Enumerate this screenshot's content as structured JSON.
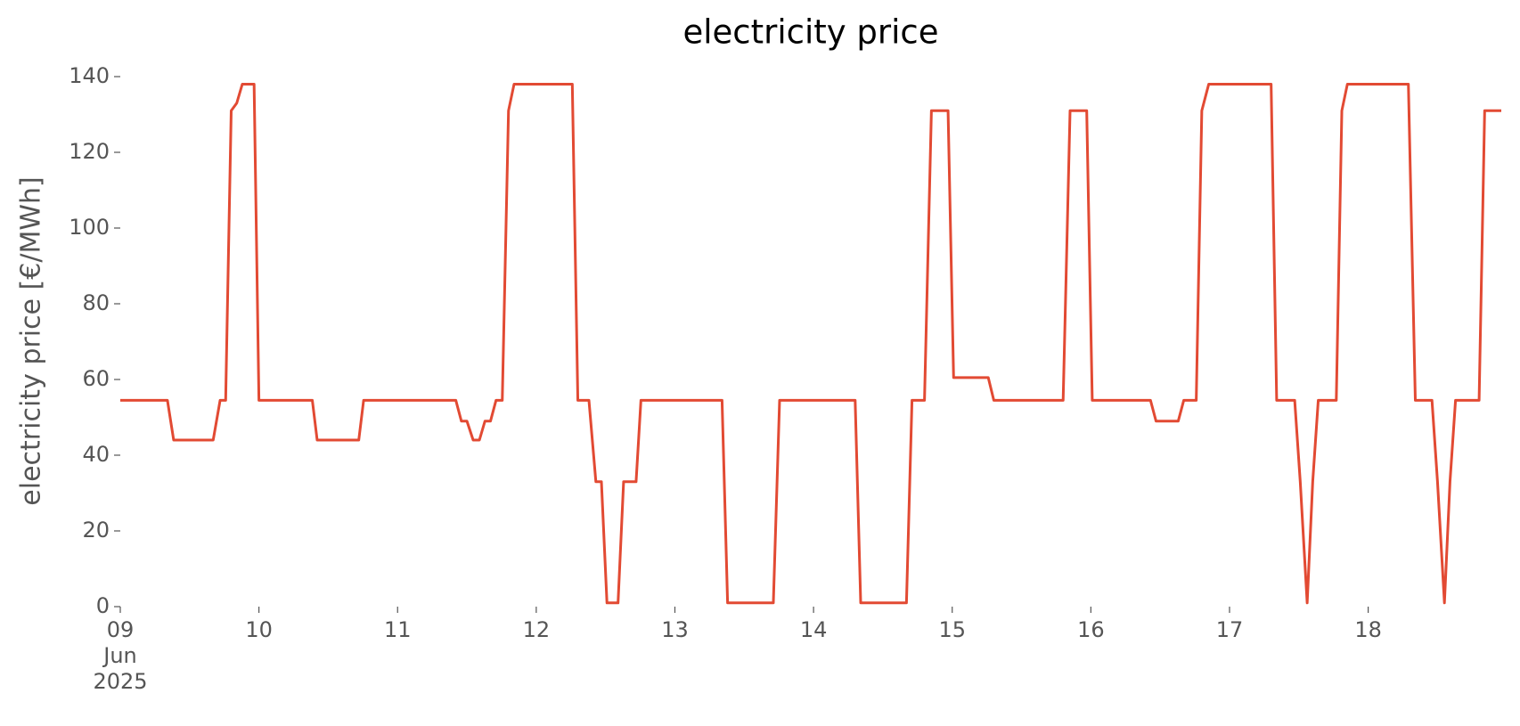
{
  "chart_data": {
    "type": "line",
    "title": "electricity price",
    "ylabel": "electricity price [€/MWh]",
    "x": [
      9,
      9.34,
      9.385,
      9.67,
      9.72,
      9.76,
      9.8,
      9.84,
      9.88,
      9.965,
      10,
      10.385,
      10.42,
      10.72,
      10.755,
      11.42,
      11.46,
      11.5,
      11.545,
      11.59,
      11.63,
      11.67,
      11.71,
      11.755,
      11.8,
      11.84,
      12.26,
      12.3,
      12.38,
      12.43,
      12.47,
      12.51,
      12.59,
      12.63,
      12.72,
      12.755,
      13.34,
      13.38,
      13.71,
      13.755,
      14.3,
      14.34,
      14.67,
      14.71,
      14.8,
      14.85,
      14.97,
      15.01,
      15.26,
      15.3,
      15.8,
      15.85,
      15.97,
      16.01,
      16.43,
      16.47,
      16.63,
      16.67,
      16.76,
      16.8,
      16.85,
      17.3,
      17.34,
      17.47,
      17.51,
      17.56,
      17.6,
      17.64,
      17.77,
      17.81,
      17.85,
      18.29,
      18.34,
      18.46,
      18.5,
      18.55,
      18.59,
      18.63,
      18.8,
      18.84,
      18.96
    ],
    "values": [
      54.5,
      54.5,
      44,
      44,
      54.5,
      54.5,
      131,
      133,
      138,
      138,
      54.5,
      54.5,
      44,
      44,
      54.5,
      54.5,
      49,
      49,
      44,
      44,
      49,
      49,
      54.5,
      54.5,
      131,
      138,
      138,
      54.5,
      54.5,
      33,
      33,
      1,
      1,
      33,
      33,
      54.5,
      54.5,
      1,
      1,
      54.5,
      54.5,
      1,
      1,
      54.5,
      54.5,
      131,
      131,
      60.5,
      60.5,
      54.5,
      54.5,
      131,
      131,
      54.5,
      54.5,
      49,
      49,
      54.5,
      54.5,
      131,
      138,
      138,
      54.5,
      54.5,
      33,
      1,
      33,
      54.5,
      54.5,
      131,
      138,
      138,
      54.5,
      54.5,
      33,
      1,
      33,
      54.5,
      54.5,
      131,
      131
    ],
    "color": "#e24a33",
    "xlim": [
      9,
      18.96
    ],
    "xticks": [
      {
        "value": 9,
        "label": "09\nJun\n2025"
      },
      10,
      11,
      12,
      13,
      14,
      15,
      16,
      17,
      18
    ],
    "ylim": [
      0,
      140
    ],
    "yticks": [
      0,
      20,
      40,
      60,
      80,
      100,
      120,
      140
    ],
    "grid": false
  }
}
